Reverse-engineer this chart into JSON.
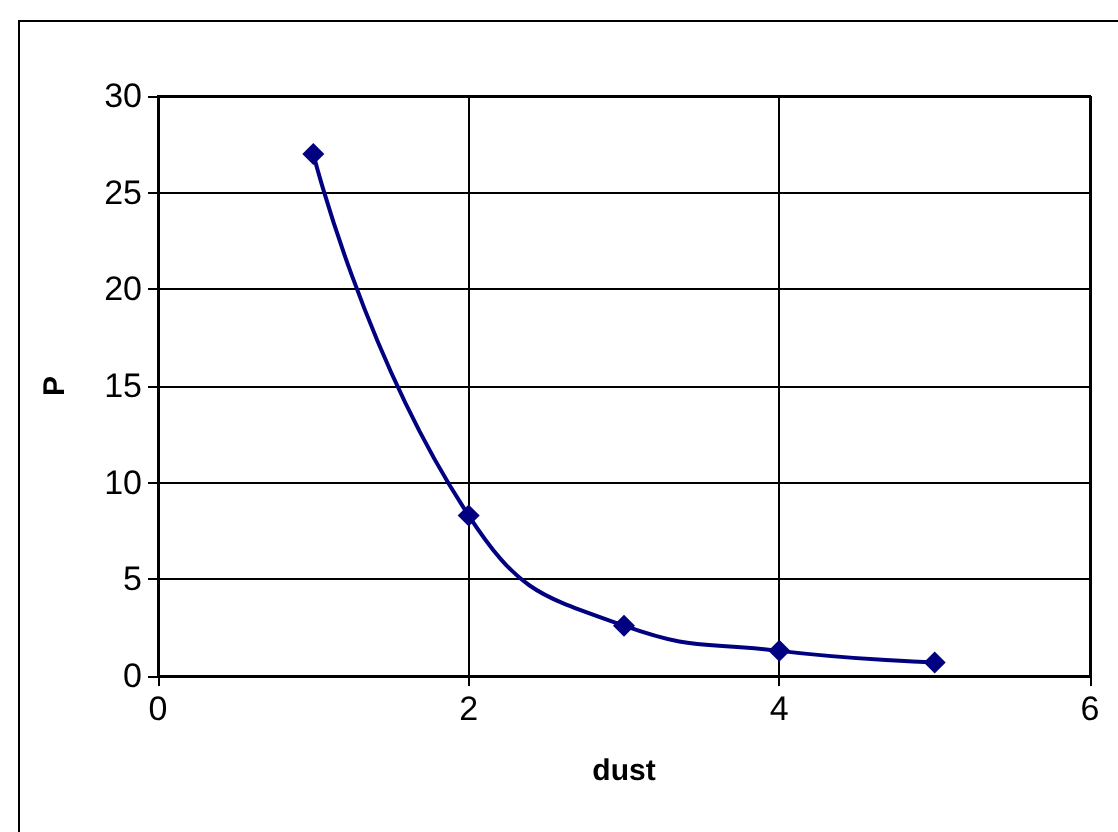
{
  "chart_data": {
    "type": "line",
    "xlabel": "dust",
    "ylabel": "P",
    "x": [
      1,
      2,
      3,
      4,
      5
    ],
    "series": [
      {
        "color": "#000080",
        "values": [
          27.0,
          8.3,
          2.6,
          1.3,
          0.7
        ]
      }
    ],
    "xlim": [
      0,
      6
    ],
    "xticks": [
      0,
      2,
      4,
      6
    ],
    "ylim": [
      0,
      30
    ],
    "yticks": [
      0,
      5,
      10,
      15,
      20,
      25,
      30
    ],
    "grid": true,
    "marker": "diamond",
    "line_style": "solid"
  }
}
